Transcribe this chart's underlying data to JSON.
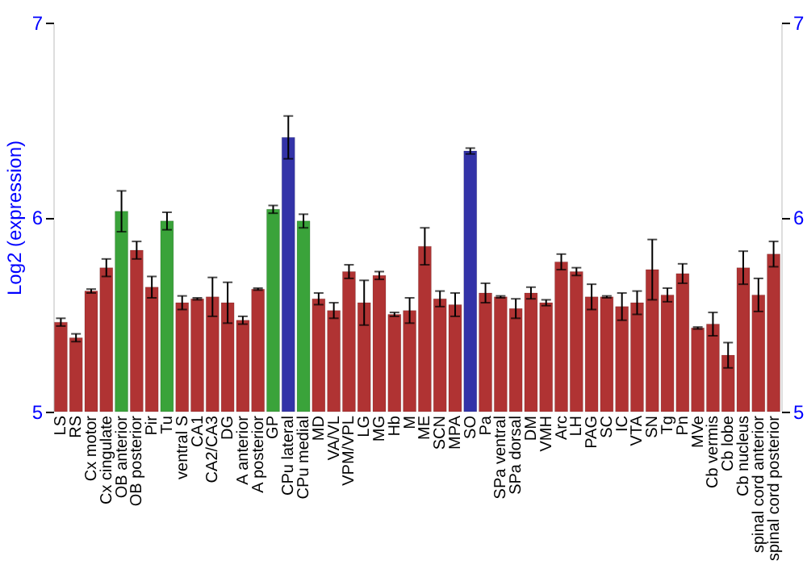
{
  "chart_data": {
    "type": "bar",
    "ylabel": "Log2 (expression)",
    "categories": [
      "LS",
      "RS",
      "Cx motor",
      "Cx cingulate",
      "OB anterior",
      "OB posterior",
      "Pir",
      "Tu",
      "ventral S",
      "CA1",
      "CA2/CA3",
      "DG",
      "A anterior",
      "A posterior",
      "GP",
      "CPu lateral",
      "CPu medial",
      "MD",
      "VA/VL",
      "VPM/VPL",
      "LG",
      "MG",
      "Hb",
      "M",
      "ME",
      "SCN",
      "MPA",
      "SO",
      "Pa",
      "SPa ventral",
      "SPa dorsal",
      "DM",
      "VMH",
      "Arc",
      "LH",
      "PAG",
      "SC",
      "IC",
      "VTA",
      "SN",
      "Tg",
      "Pn",
      "MVe",
      "Cb vermis",
      "Cb lobe",
      "Cb nucleus",
      "spinal cord anterior",
      "spinal cord posterior"
    ],
    "values": [
      5.46,
      5.38,
      5.62,
      5.74,
      6.03,
      5.83,
      5.64,
      5.98,
      5.56,
      5.58,
      5.59,
      5.56,
      5.47,
      5.63,
      6.04,
      6.41,
      5.98,
      5.58,
      5.52,
      5.72,
      5.56,
      5.7,
      5.5,
      5.52,
      5.85,
      5.58,
      5.55,
      6.34,
      5.61,
      5.59,
      5.53,
      5.61,
      5.56,
      5.77,
      5.72,
      5.59,
      5.59,
      5.54,
      5.56,
      5.73,
      5.6,
      5.71,
      5.43,
      5.45,
      5.29,
      5.74,
      5.6,
      5.81
    ],
    "errors": [
      0.02,
      0.02,
      0.01,
      0.045,
      0.105,
      0.045,
      0.055,
      0.045,
      0.035,
      0.005,
      0.1,
      0.105,
      0.02,
      0.005,
      0.02,
      0.11,
      0.035,
      0.03,
      0.04,
      0.035,
      0.115,
      0.02,
      0.01,
      0.065,
      0.095,
      0.04,
      0.06,
      0.015,
      0.05,
      0.005,
      0.05,
      0.03,
      0.015,
      0.04,
      0.02,
      0.065,
      0.005,
      0.07,
      0.06,
      0.155,
      0.035,
      0.05,
      0.005,
      0.06,
      0.065,
      0.085,
      0.085,
      0.065
    ],
    "colors": [
      "#b03333",
      "#b03333",
      "#b03333",
      "#b03333",
      "#3aa33a",
      "#b03333",
      "#b03333",
      "#3aa33a",
      "#b03333",
      "#b03333",
      "#b03333",
      "#b03333",
      "#b03333",
      "#b03333",
      "#3aa33a",
      "#3333a8",
      "#3aa33a",
      "#b03333",
      "#b03333",
      "#b03333",
      "#b03333",
      "#b03333",
      "#b03333",
      "#b03333",
      "#b03333",
      "#b03333",
      "#b03333",
      "#3333a8",
      "#b03333",
      "#b03333",
      "#b03333",
      "#b03333",
      "#b03333",
      "#b03333",
      "#b03333",
      "#b03333",
      "#b03333",
      "#b03333",
      "#b03333",
      "#b03333",
      "#b03333",
      "#b03333",
      "#b03333",
      "#b03333",
      "#b03333",
      "#b03333",
      "#b03333",
      "#b03333"
    ],
    "ylim": [
      5,
      7
    ],
    "yticks": [
      5,
      6,
      7
    ],
    "y2lim": [
      5,
      7
    ],
    "y2ticks": [
      5,
      6,
      7
    ],
    "grid": "y"
  }
}
